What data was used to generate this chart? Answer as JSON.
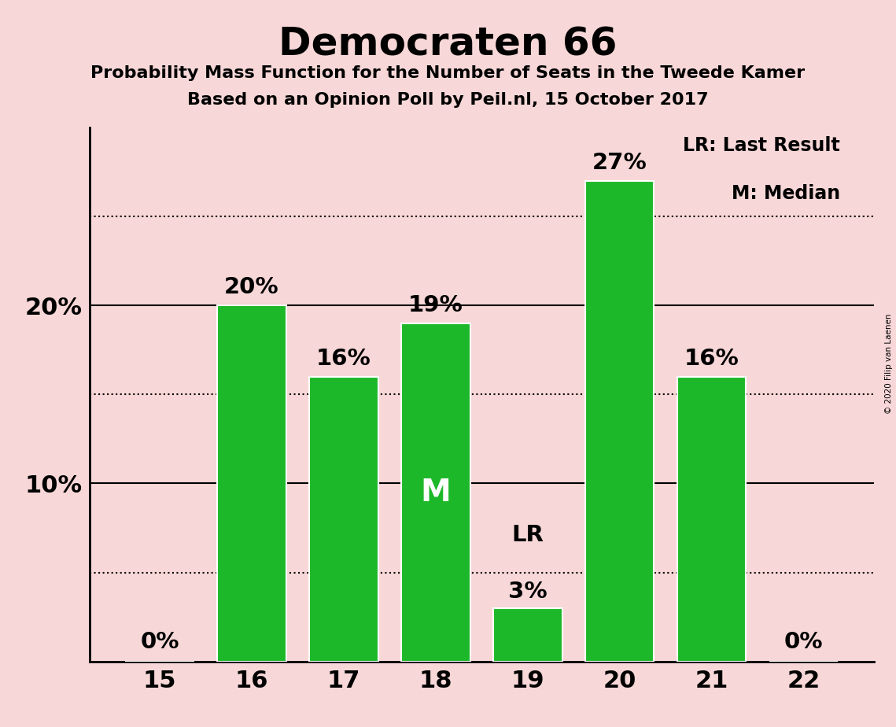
{
  "title": "Democraten 66",
  "subtitle1": "Probability Mass Function for the Number of Seats in the Tweede Kamer",
  "subtitle2": "Based on an Opinion Poll by Peil.nl, 15 October 2017",
  "categories": [
    15,
    16,
    17,
    18,
    19,
    20,
    21,
    22
  ],
  "values": [
    0,
    20,
    16,
    19,
    3,
    27,
    16,
    0
  ],
  "bar_color": "#1db829",
  "background_color": "#f7d7d7",
  "bar_edge_color": "white",
  "title_fontsize": 36,
  "subtitle_fontsize": 16,
  "tick_fontsize": 22,
  "median_seat": 18,
  "lr_seat": 19,
  "median_label": "M",
  "lr_label": "LR",
  "legend_text1": "LR: Last Result",
  "legend_text2": "M: Median",
  "copyright_text": "© 2020 Filip van Laenen",
  "ylim": [
    0,
    30
  ],
  "solid_grid": [
    10,
    20
  ],
  "dotted_grid": [
    5,
    15,
    25
  ],
  "annotation_fontsize": 21,
  "bar_width": 0.75,
  "legend_fontsize": 17
}
